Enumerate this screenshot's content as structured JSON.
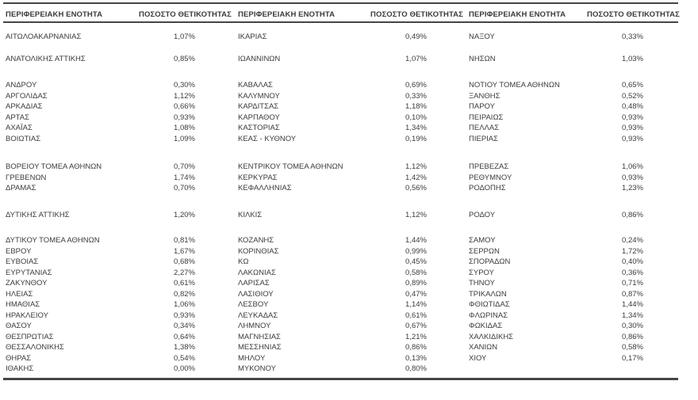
{
  "page": {
    "background_color": "#ffffff",
    "text_color": "#3b3b3b",
    "rule_color": "#454545"
  },
  "table": {
    "header": {
      "region_label": "ΠΕΡΙΦΕΡΕΙΑΚΗ ΕΝΟΤΗΤΑ",
      "rate_label": "ΠΟΣΟΣΤΟ ΘΕΤΙΚΟΤΗΤΑΣ"
    },
    "blocks": [
      {
        "rows": [
          [
            {
              "name": "ΑΙΤΩΛΟΑΚΑΡΝΑΝΙΑΣ",
              "rate": "1,07%"
            },
            {
              "name": "ΙΚΑΡΙΑΣ",
              "rate": "0,49%"
            },
            {
              "name": "ΝΑΞΟΥ",
              "rate": "0,33%"
            }
          ]
        ]
      },
      {
        "rows": [
          [
            {
              "name": "ΑΝΑΤΟΛΙΚΗΣ ΑΤΤΙΚΗΣ",
              "rate": "0,85%"
            },
            {
              "name": "ΙΩΑΝΝΙΝΩΝ",
              "rate": "1,07%"
            },
            {
              "name": "ΝΗΣΩΝ",
              "rate": "1,03%"
            }
          ]
        ]
      },
      {
        "rows": [
          [
            {
              "name": "ΑΝΔΡΟΥ",
              "rate": "0,30%"
            },
            {
              "name": "ΚΑΒΑΛΑΣ",
              "rate": "0,69%"
            },
            {
              "name": "ΝΟΤΙΟΥ ΤΟΜΕΑ ΑΘΗΝΩΝ",
              "rate": "0,65%"
            }
          ],
          [
            {
              "name": "ΑΡΓΟΛΙΔΑΣ",
              "rate": "1,12%"
            },
            {
              "name": "ΚΑΛΥΜΝΟΥ",
              "rate": "0,33%"
            },
            {
              "name": "ΞΑΝΘΗΣ",
              "rate": "0,52%"
            }
          ],
          [
            {
              "name": "ΑΡΚΑΔΙΑΣ",
              "rate": "0,66%"
            },
            {
              "name": "ΚΑΡΔΙΤΣΑΣ",
              "rate": "1,18%"
            },
            {
              "name": "ΠΑΡΟΥ",
              "rate": "0,48%"
            }
          ],
          [
            {
              "name": "ΑΡΤΑΣ",
              "rate": "0,93%"
            },
            {
              "name": "ΚΑΡΠΑΘΟΥ",
              "rate": "0,10%"
            },
            {
              "name": "ΠΕΙΡΑΙΩΣ",
              "rate": "0,93%"
            }
          ],
          [
            {
              "name": "ΑΧΑΪΑΣ",
              "rate": "1,08%"
            },
            {
              "name": "ΚΑΣΤΟΡΙΑΣ",
              "rate": "1,34%"
            },
            {
              "name": "ΠΕΛΛΑΣ",
              "rate": "0,93%"
            }
          ],
          [
            {
              "name": "ΒΟΙΩΤΙΑΣ",
              "rate": "1,09%"
            },
            {
              "name": "ΚΕΑΣ - ΚΥΘΝΟΥ",
              "rate": "0,19%"
            },
            {
              "name": "ΠΙΕΡΙΑΣ",
              "rate": "0,93%"
            }
          ]
        ]
      },
      {
        "rows": [
          [
            {
              "name": "ΒΟΡΕΙΟΥ ΤΟΜΕΑ ΑΘΗΝΩΝ",
              "rate": "0,70%"
            },
            {
              "name": "ΚΕΝΤΡΙΚΟΥ ΤΟΜΕΑ ΑΘΗΝΩΝ",
              "rate": "1,12%"
            },
            {
              "name": "ΠΡΕΒΕΖΑΣ",
              "rate": "1,06%"
            }
          ],
          [
            {
              "name": "ΓΡΕΒΕΝΩΝ",
              "rate": "1,74%"
            },
            {
              "name": "ΚΕΡΚΥΡΑΣ",
              "rate": "1,42%"
            },
            {
              "name": "ΡΕΘΥΜΝΟΥ",
              "rate": "0,93%"
            }
          ],
          [
            {
              "name": "ΔΡΑΜΑΣ",
              "rate": "0,70%"
            },
            {
              "name": "ΚΕΦΑΛΛΗΝΙΑΣ",
              "rate": "0,56%"
            },
            {
              "name": "ΡΟΔΟΠΗΣ",
              "rate": "1,23%"
            }
          ]
        ]
      },
      {
        "rows": [
          [
            {
              "name": "ΔΥΤΙΚΗΣ ΑΤΤΙΚΗΣ",
              "rate": "1,20%"
            },
            {
              "name": "ΚΙΛΚΙΣ",
              "rate": "1,12%"
            },
            {
              "name": "ΡΟΔΟΥ",
              "rate": "0,86%"
            }
          ]
        ]
      },
      {
        "rows": [
          [
            {
              "name": "ΔΥΤΙΚΟΥ ΤΟΜΕΑ ΑΘΗΝΩΝ",
              "rate": "0,81%"
            },
            {
              "name": "ΚΟΖΑΝΗΣ",
              "rate": "1,44%"
            },
            {
              "name": "ΣΑΜΟΥ",
              "rate": "0,24%"
            }
          ],
          [
            {
              "name": "ΕΒΡΟΥ",
              "rate": "1,67%"
            },
            {
              "name": "ΚΟΡΙΝΘΙΑΣ",
              "rate": "0,99%"
            },
            {
              "name": "ΣΕΡΡΩΝ",
              "rate": "1,72%"
            }
          ],
          [
            {
              "name": "ΕΥΒΟΙΑΣ",
              "rate": "0,68%"
            },
            {
              "name": "ΚΩ",
              "rate": "0,45%"
            },
            {
              "name": "ΣΠΟΡΑΔΩΝ",
              "rate": "0,40%"
            }
          ],
          [
            {
              "name": "ΕΥΡΥΤΑΝΙΑΣ",
              "rate": "2,27%"
            },
            {
              "name": "ΛΑΚΩΝΙΑΣ",
              "rate": "0,58%"
            },
            {
              "name": "ΣΥΡΟΥ",
              "rate": "0,36%"
            }
          ],
          [
            {
              "name": "ΖΑΚΥΝΘΟΥ",
              "rate": "0,61%"
            },
            {
              "name": "ΛΑΡΙΣΑΣ",
              "rate": "0,89%"
            },
            {
              "name": "ΤΗΝΟΥ",
              "rate": "0,71%"
            }
          ],
          [
            {
              "name": "ΗΛΕΙΑΣ",
              "rate": "0,82%"
            },
            {
              "name": "ΛΑΣΙΘΙΟΥ",
              "rate": "0,47%"
            },
            {
              "name": "ΤΡΙΚΑΛΩΝ",
              "rate": "0,87%"
            }
          ],
          [
            {
              "name": "ΗΜΑΘΙΑΣ",
              "rate": "1,06%"
            },
            {
              "name": "ΛΕΣΒΟΥ",
              "rate": "1,14%"
            },
            {
              "name": "ΦΘΙΩΤΙΔΑΣ",
              "rate": "1,44%"
            }
          ],
          [
            {
              "name": "ΗΡΑΚΛΕΙΟΥ",
              "rate": "0,93%"
            },
            {
              "name": "ΛΕΥΚΑΔΑΣ",
              "rate": "0,61%"
            },
            {
              "name": "ΦΛΩΡΙΝΑΣ",
              "rate": "1,34%"
            }
          ],
          [
            {
              "name": "ΘΑΣΟΥ",
              "rate": "0,34%"
            },
            {
              "name": "ΛΗΜΝΟΥ",
              "rate": "0,67%"
            },
            {
              "name": "ΦΩΚΙΔΑΣ",
              "rate": "0,30%"
            }
          ],
          [
            {
              "name": "ΘΕΣΠΡΩΤΙΑΣ",
              "rate": "0,64%"
            },
            {
              "name": "ΜΑΓΝΗΣΙΑΣ",
              "rate": "1,21%"
            },
            {
              "name": "ΧΑΛΚΙΔΙΚΗΣ",
              "rate": "0,86%"
            }
          ],
          [
            {
              "name": "ΘΕΣΣΑΛΟΝΙΚΗΣ",
              "rate": "1,38%"
            },
            {
              "name": "ΜΕΣΣΗΝΙΑΣ",
              "rate": "0,86%"
            },
            {
              "name": "ΧΑΝΙΩΝ",
              "rate": "0,58%"
            }
          ],
          [
            {
              "name": "ΘΗΡΑΣ",
              "rate": "0,54%"
            },
            {
              "name": "ΜΗΛΟΥ",
              "rate": "0,13%"
            },
            {
              "name": "ΧΙΟΥ",
              "rate": "0,17%"
            }
          ],
          [
            {
              "name": "ΙΘΑΚΗΣ",
              "rate": "0,00%"
            },
            {
              "name": "ΜΥΚΟΝΟΥ",
              "rate": "0,80%"
            },
            null
          ]
        ]
      }
    ]
  }
}
